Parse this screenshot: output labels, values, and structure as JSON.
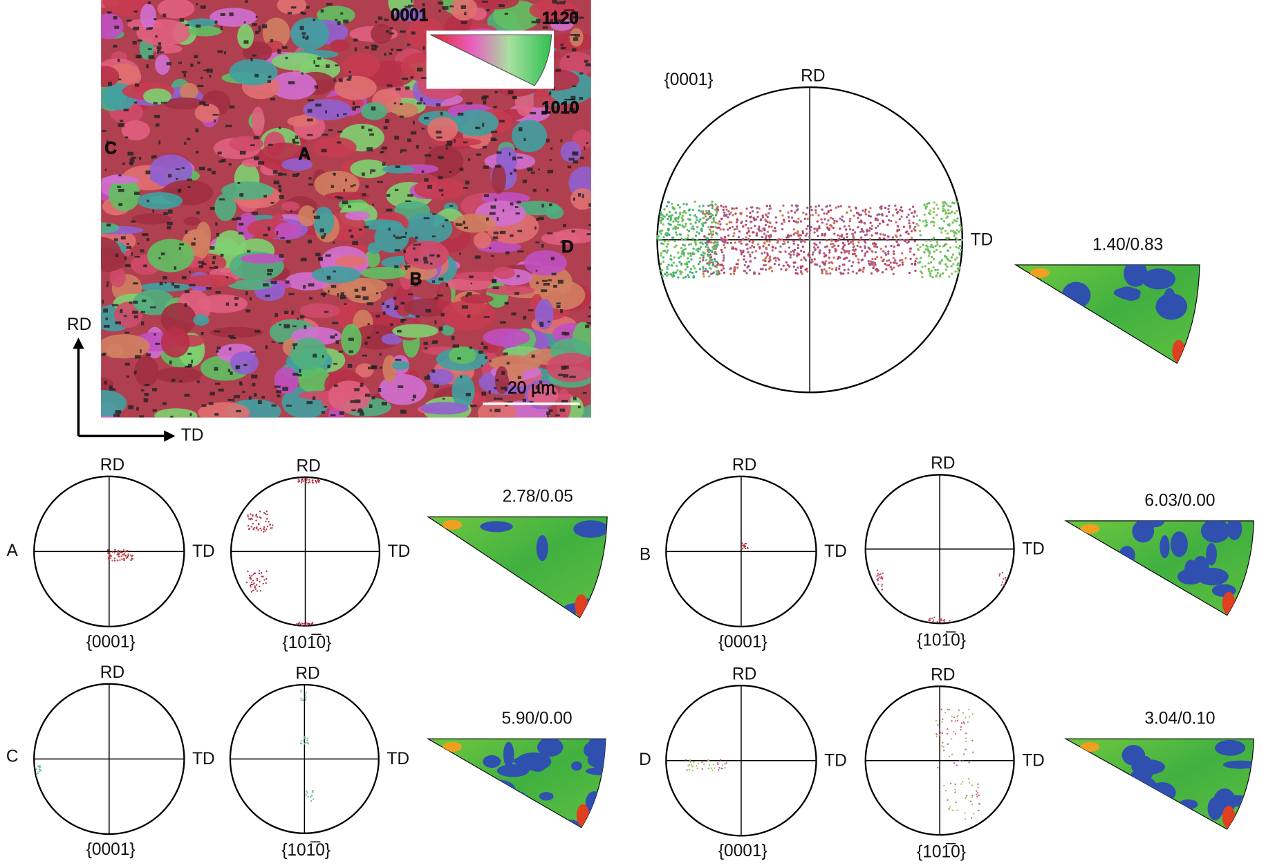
{
  "map": {
    "ipf_key": {
      "corner_0001": "0001",
      "corner_1120": "112̅0",
      "corner_1010": "101̅0"
    },
    "grain_labels": [
      "C",
      "A",
      "D",
      "B"
    ],
    "scale_bar": "20 µm",
    "axes": {
      "rd": "RD",
      "td": "TD"
    }
  },
  "overall": {
    "pole_figure": {
      "plane": "{0001}",
      "rd": "RD",
      "td": "TD"
    },
    "ipf_ratio": "1.40/0.83"
  },
  "grains": [
    {
      "label": "A",
      "pf1": {
        "rd": "RD",
        "td": "TD",
        "plane": "{0001}"
      },
      "pf2": {
        "rd": "RD",
        "td": "TD",
        "plane": "{101̅0}"
      },
      "ipf_ratio": "2.78/0.05"
    },
    {
      "label": "B",
      "pf1": {
        "rd": "RD",
        "td": "TD",
        "plane": "{0001}"
      },
      "pf2": {
        "rd": "RD",
        "td": "TD",
        "plane": "{101̅0}"
      },
      "ipf_ratio": "6.03/0.00"
    },
    {
      "label": "C",
      "pf1": {
        "rd": "RD",
        "td": "TD",
        "plane": "{0001}"
      },
      "pf2": {
        "rd": "RD",
        "td": "TD",
        "plane": "{101̅0}"
      },
      "ipf_ratio": "5.90/0.00"
    },
    {
      "label": "D",
      "pf1": {
        "rd": "RD",
        "td": "TD",
        "plane": "{0001}"
      },
      "pf2": {
        "rd": "RD",
        "td": "TD",
        "plane": "{101̅0}"
      },
      "ipf_ratio": "3.04/0.10"
    }
  ]
}
